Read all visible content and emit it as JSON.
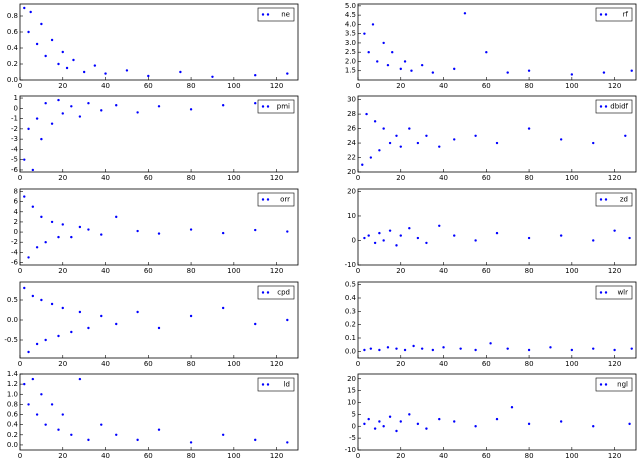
{
  "chart_data": [
    {
      "type": "scatter",
      "series": [
        {
          "name": "ne",
          "color": "#0000ff",
          "x": [
            2,
            4,
            5,
            8,
            10,
            12,
            15,
            18,
            20,
            22,
            25,
            30,
            35,
            40,
            50,
            60,
            75,
            90,
            110,
            125
          ],
          "values": [
            0.9,
            0.6,
            0.85,
            0.45,
            0.7,
            0.3,
            0.5,
            0.2,
            0.35,
            0.15,
            0.25,
            0.1,
            0.18,
            0.08,
            0.12,
            0.05,
            0.1,
            0.04,
            0.06,
            0.08
          ]
        }
      ],
      "xlim": [
        0,
        130
      ],
      "xticks": [
        0,
        20,
        40,
        60,
        80,
        100,
        120
      ],
      "ylim": [
        0,
        0.95
      ],
      "yticks": [
        {
          "value": 0,
          "label": "0.0"
        },
        0.2,
        0.4,
        0.6,
        0.8
      ],
      "legend": "upper right"
    },
    {
      "type": "scatter",
      "series": [
        {
          "name": "rf",
          "color": "#0000ff",
          "x": [
            3,
            5,
            7,
            9,
            12,
            14,
            16,
            20,
            22,
            25,
            30,
            35,
            45,
            50,
            60,
            70,
            80,
            100,
            115,
            128
          ],
          "values": [
            3.5,
            2.5,
            4.0,
            2.0,
            3.0,
            1.8,
            2.5,
            1.6,
            2.0,
            1.5,
            1.8,
            1.4,
            1.6,
            4.6,
            2.5,
            1.4,
            1.5,
            1.3,
            1.4,
            1.5
          ]
        }
      ],
      "xlim": [
        0,
        130
      ],
      "xticks": [
        0,
        20,
        40,
        60,
        80,
        100,
        120
      ],
      "ylim": [
        1.0,
        5.1
      ],
      "yticks": [
        1.5,
        {
          "value": 2,
          "label": "2.0"
        },
        2.5,
        {
          "value": 3,
          "label": "3.0"
        },
        3.5,
        {
          "value": 4,
          "label": "4.0"
        },
        4.5,
        {
          "value": 5,
          "label": "5.0"
        }
      ],
      "legend": "upper right"
    },
    {
      "type": "scatter",
      "series": [
        {
          "name": "pmi",
          "color": "#0000ff",
          "x": [
            2,
            4,
            6,
            8,
            10,
            12,
            15,
            18,
            20,
            24,
            28,
            32,
            38,
            45,
            55,
            65,
            80,
            95,
            110,
            125
          ],
          "values": [
            -5,
            -2,
            -6,
            -1,
            -3,
            0.5,
            -1.5,
            0.8,
            -0.5,
            0.2,
            -0.8,
            0.5,
            -0.2,
            0.3,
            -0.4,
            0.2,
            -0.1,
            0.3,
            0.5,
            -0.3
          ]
        }
      ],
      "xlim": [
        0,
        130
      ],
      "xticks": [
        0,
        20,
        40,
        60,
        80,
        100,
        120
      ],
      "ylim": [
        -6.2,
        1.2
      ],
      "yticks": [
        1,
        0,
        -1,
        -2,
        -3,
        -4,
        -5,
        -6
      ],
      "legend": "upper right"
    },
    {
      "type": "scatter",
      "series": [
        {
          "name": "dbidf",
          "color": "#0000ff",
          "x": [
            2,
            4,
            6,
            8,
            10,
            12,
            15,
            18,
            20,
            24,
            28,
            32,
            38,
            45,
            55,
            65,
            80,
            95,
            110,
            125
          ],
          "values": [
            21,
            28,
            22,
            27,
            23,
            26,
            24,
            25,
            23.5,
            26,
            24,
            25,
            23.5,
            24.5,
            25,
            24,
            26,
            24.5,
            24,
            25
          ]
        }
      ],
      "xlim": [
        0,
        130
      ],
      "xticks": [
        0,
        20,
        40,
        60,
        80,
        100,
        120
      ],
      "ylim": [
        20,
        30.5
      ],
      "yticks": [
        20,
        22,
        24,
        26,
        28,
        30
      ],
      "legend": "upper right"
    },
    {
      "type": "scatter",
      "series": [
        {
          "name": "orr",
          "color": "#0000ff",
          "x": [
            2,
            4,
            6,
            8,
            10,
            12,
            15,
            18,
            20,
            24,
            28,
            32,
            38,
            45,
            55,
            65,
            80,
            95,
            110,
            125
          ],
          "values": [
            7,
            -5,
            5,
            -3,
            3,
            -2,
            2,
            -1,
            1.5,
            -1,
            1,
            0.5,
            -0.5,
            3,
            0.2,
            -0.3,
            0.5,
            -0.2,
            0.4,
            0.1
          ]
        }
      ],
      "xlim": [
        0,
        130
      ],
      "xticks": [
        0,
        20,
        40,
        60,
        80,
        100,
        120
      ],
      "ylim": [
        -6.5,
        8.5
      ],
      "yticks": [
        -6,
        -4,
        -2,
        0,
        2,
        4,
        6,
        8
      ],
      "legend": "upper right"
    },
    {
      "type": "scatter",
      "series": [
        {
          "name": "zd",
          "color": "#0000ff",
          "x": [
            3,
            5,
            8,
            10,
            12,
            15,
            18,
            20,
            24,
            28,
            32,
            38,
            45,
            55,
            65,
            80,
            95,
            110,
            120,
            127
          ],
          "values": [
            1,
            2,
            -1,
            3,
            0,
            4,
            -2,
            2,
            5,
            1,
            -1,
            6,
            2,
            0,
            3,
            1,
            2,
            0,
            4,
            1
          ]
        }
      ],
      "xlim": [
        0,
        130
      ],
      "xticks": [
        0,
        20,
        40,
        60,
        80,
        100,
        120
      ],
      "ylim": [
        -10,
        21
      ],
      "yticks": [
        -10,
        0,
        10,
        20
      ],
      "legend": "upper right"
    },
    {
      "type": "scatter",
      "series": [
        {
          "name": "cpd",
          "color": "#0000ff",
          "x": [
            2,
            4,
            6,
            8,
            10,
            12,
            15,
            18,
            20,
            24,
            28,
            32,
            38,
            45,
            55,
            65,
            80,
            95,
            110,
            125
          ],
          "values": [
            0.8,
            -0.8,
            0.6,
            -0.6,
            0.5,
            -0.5,
            0.4,
            -0.4,
            0.3,
            -0.3,
            0.2,
            -0.2,
            0.1,
            -0.1,
            0.2,
            -0.2,
            0.1,
            0.3,
            -0.1,
            0
          ]
        }
      ],
      "xlim": [
        0,
        130
      ],
      "xticks": [
        0,
        20,
        40,
        60,
        80,
        100,
        120
      ],
      "ylim": [
        -0.95,
        0.95
      ],
      "yticks": [
        -0.5,
        {
          "value": 0,
          "label": "0.0"
        },
        0.5
      ],
      "legend": "upper right"
    },
    {
      "type": "scatter",
      "series": [
        {
          "name": "wlr",
          "color": "#0000ff",
          "x": [
            3,
            6,
            10,
            14,
            18,
            22,
            26,
            30,
            35,
            40,
            48,
            55,
            62,
            70,
            80,
            90,
            100,
            110,
            120,
            128
          ],
          "values": [
            0.01,
            0.02,
            0.01,
            0.03,
            0.02,
            0.01,
            0.04,
            0.02,
            0.01,
            0.03,
            0.02,
            0.01,
            0.06,
            0.02,
            0.01,
            0.03,
            0.01,
            0.02,
            0.01,
            0.02
          ]
        }
      ],
      "xlim": [
        0,
        130
      ],
      "xticks": [
        0,
        20,
        40,
        60,
        80,
        100,
        120
      ],
      "ylim": [
        -0.05,
        0.52
      ],
      "yticks": [
        {
          "value": 0,
          "label": "0.0"
        },
        0.1,
        0.2,
        0.3,
        0.4,
        0.5
      ],
      "legend": "upper right"
    },
    {
      "type": "scatter",
      "series": [
        {
          "name": "ld",
          "color": "#0000ff",
          "x": [
            2,
            4,
            6,
            8,
            10,
            12,
            15,
            18,
            20,
            24,
            28,
            32,
            38,
            45,
            55,
            65,
            80,
            95,
            110,
            125
          ],
          "values": [
            1.2,
            0.8,
            1.3,
            0.6,
            1.0,
            0.4,
            0.8,
            0.3,
            0.6,
            0.2,
            1.3,
            0.1,
            0.4,
            0.2,
            0.1,
            0.3,
            0.05,
            0.2,
            0.1,
            0.05
          ]
        }
      ],
      "xlim": [
        0,
        130
      ],
      "xticks": [
        0,
        20,
        40,
        60,
        80,
        100,
        120
      ],
      "ylim": [
        -0.1,
        1.4
      ],
      "yticks": [
        {
          "value": 0,
          "label": "0.0"
        },
        0.2,
        0.4,
        0.6,
        0.8,
        {
          "value": 1,
          "label": "1.0"
        },
        1.2,
        1.4
      ],
      "legend": "upper right"
    },
    {
      "type": "scatter",
      "series": [
        {
          "name": "ngl",
          "color": "#0000ff",
          "x": [
            3,
            5,
            8,
            10,
            12,
            15,
            18,
            20,
            24,
            28,
            32,
            38,
            45,
            55,
            65,
            72,
            80,
            95,
            110,
            127
          ],
          "values": [
            1,
            3,
            -1,
            2,
            0,
            4,
            -2,
            2,
            5,
            1,
            -1,
            3,
            2,
            0,
            3,
            8,
            1,
            2,
            0,
            1
          ]
        }
      ],
      "xlim": [
        0,
        130
      ],
      "xticks": [
        0,
        20,
        40,
        60,
        80,
        100,
        120
      ],
      "ylim": [
        -10,
        22
      ],
      "yticks": [
        -10,
        -5,
        0,
        5,
        10,
        15,
        20
      ],
      "legend": "upper right"
    }
  ]
}
